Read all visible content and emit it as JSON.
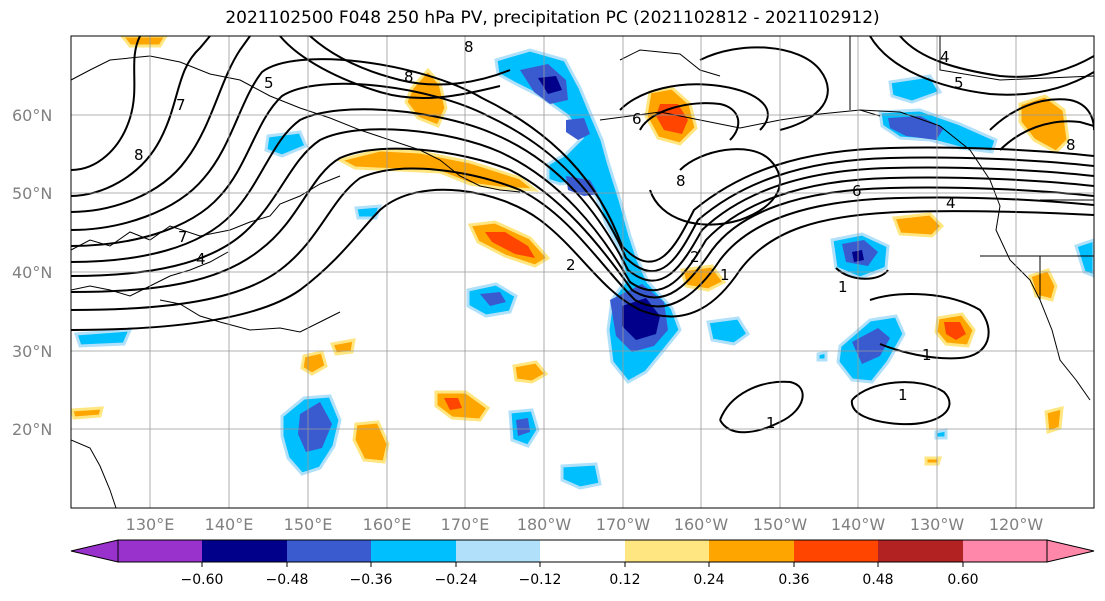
{
  "title": "2021102500 F048 250 hPa PV, precipitation PC (2021102812 - 2021102912)",
  "lat_labels": [
    "60°N",
    "50°N",
    "40°N",
    "30°N",
    "20°N"
  ],
  "lon_labels": [
    "130°E",
    "140°E",
    "150°E",
    "160°E",
    "170°E",
    "180°W",
    "170°W",
    "160°W",
    "150°W",
    "140°W",
    "130°W",
    "120°W"
  ],
  "contour_labels": [
    "1",
    "2",
    "4",
    "5",
    "6",
    "7",
    "8"
  ],
  "colorbar": {
    "colors": [
      "#9932cc",
      "#00008b",
      "#3a5bcf",
      "#00bfff",
      "#b0e0fa",
      "#ffffff",
      "#ffe680",
      "#ffa500",
      "#ff4500",
      "#b22222",
      "#ff88aa"
    ],
    "tick_labels": [
      "−0.60",
      "−0.48",
      "−0.36",
      "−0.24",
      "−0.12",
      "0.12",
      "0.24",
      "0.36",
      "0.48",
      "0.60"
    ]
  },
  "colors": {
    "grid": "#999999",
    "contour": "#000000",
    "coast": "#000000"
  }
}
